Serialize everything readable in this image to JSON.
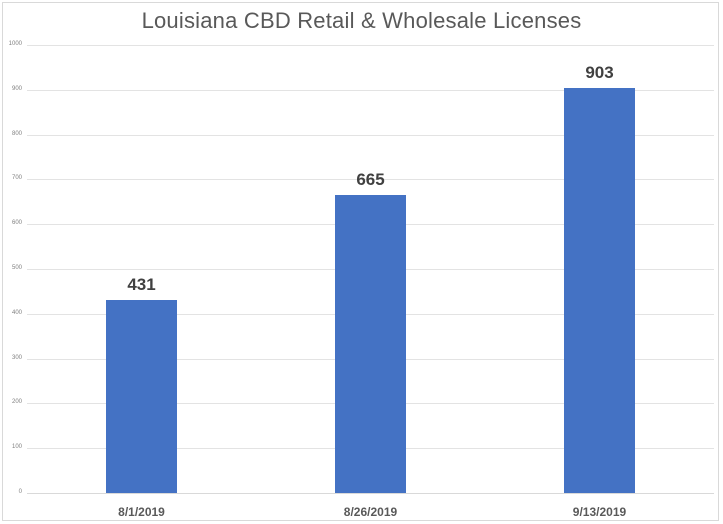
{
  "chart_data": {
    "type": "bar",
    "title": "Louisiana CBD Retail & Wholesale Licenses",
    "categories": [
      "8/1/2019",
      "8/26/2019",
      "9/13/2019"
    ],
    "values": [
      431,
      665,
      903
    ],
    "data_labels": [
      "431",
      "665",
      "903"
    ],
    "xlabel": "",
    "ylabel": "",
    "ylim": [
      0,
      1000
    ],
    "yticks": [
      "0",
      "100",
      "200",
      "300",
      "400",
      "500",
      "600",
      "700",
      "800",
      "900",
      "1000"
    ],
    "grid": true,
    "legend": null,
    "bar_color": "#4472c4"
  }
}
